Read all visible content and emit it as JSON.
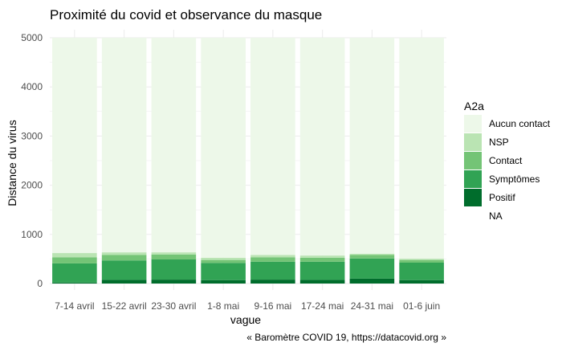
{
  "chart_data": {
    "type": "bar",
    "stacked": true,
    "title": "Proximité du covid et observance du masque",
    "xlabel": "vague",
    "ylabel": "Distance du virus",
    "caption": "« Baromètre COVID 19, https://datacovid.org »",
    "ylim": [
      0,
      5000
    ],
    "yticks": [
      0,
      1000,
      2000,
      3000,
      4000,
      5000
    ],
    "grid": true,
    "legend_title": "A2a",
    "legend_position": "right",
    "categories": [
      "7-14 avril",
      "15-22 avril",
      "23-30 avril",
      "1-8 mai",
      "9-16 mai",
      "17-24 mai",
      "24-31 mai",
      "01-6 juin"
    ],
    "series": [
      {
        "name": "NA",
        "color": "#ffffff",
        "values": [
          0,
          0,
          0,
          0,
          0,
          0,
          0,
          0
        ]
      },
      {
        "name": "Positif",
        "color": "#006d2c",
        "values": [
          20,
          75,
          80,
          70,
          80,
          75,
          100,
          70
        ]
      },
      {
        "name": "Symptômes",
        "color": "#31a354",
        "values": [
          390,
          395,
          410,
          350,
          365,
          370,
          410,
          355
        ]
      },
      {
        "name": "Contact",
        "color": "#74c476",
        "values": [
          125,
          110,
          100,
          60,
          90,
          80,
          70,
          55
        ]
      },
      {
        "name": "NSP",
        "color": "#bae4b3",
        "values": [
          85,
          55,
          45,
          45,
          45,
          45,
          25,
          25
        ]
      },
      {
        "name": "Aucun contact",
        "color": "#edf8e9",
        "values": [
          4380,
          4365,
          4365,
          4475,
          4420,
          4430,
          4395,
          4495
        ]
      }
    ],
    "legend_order": [
      "Aucun contact",
      "NSP",
      "Contact",
      "Symptômes",
      "Positif",
      "NA"
    ]
  }
}
